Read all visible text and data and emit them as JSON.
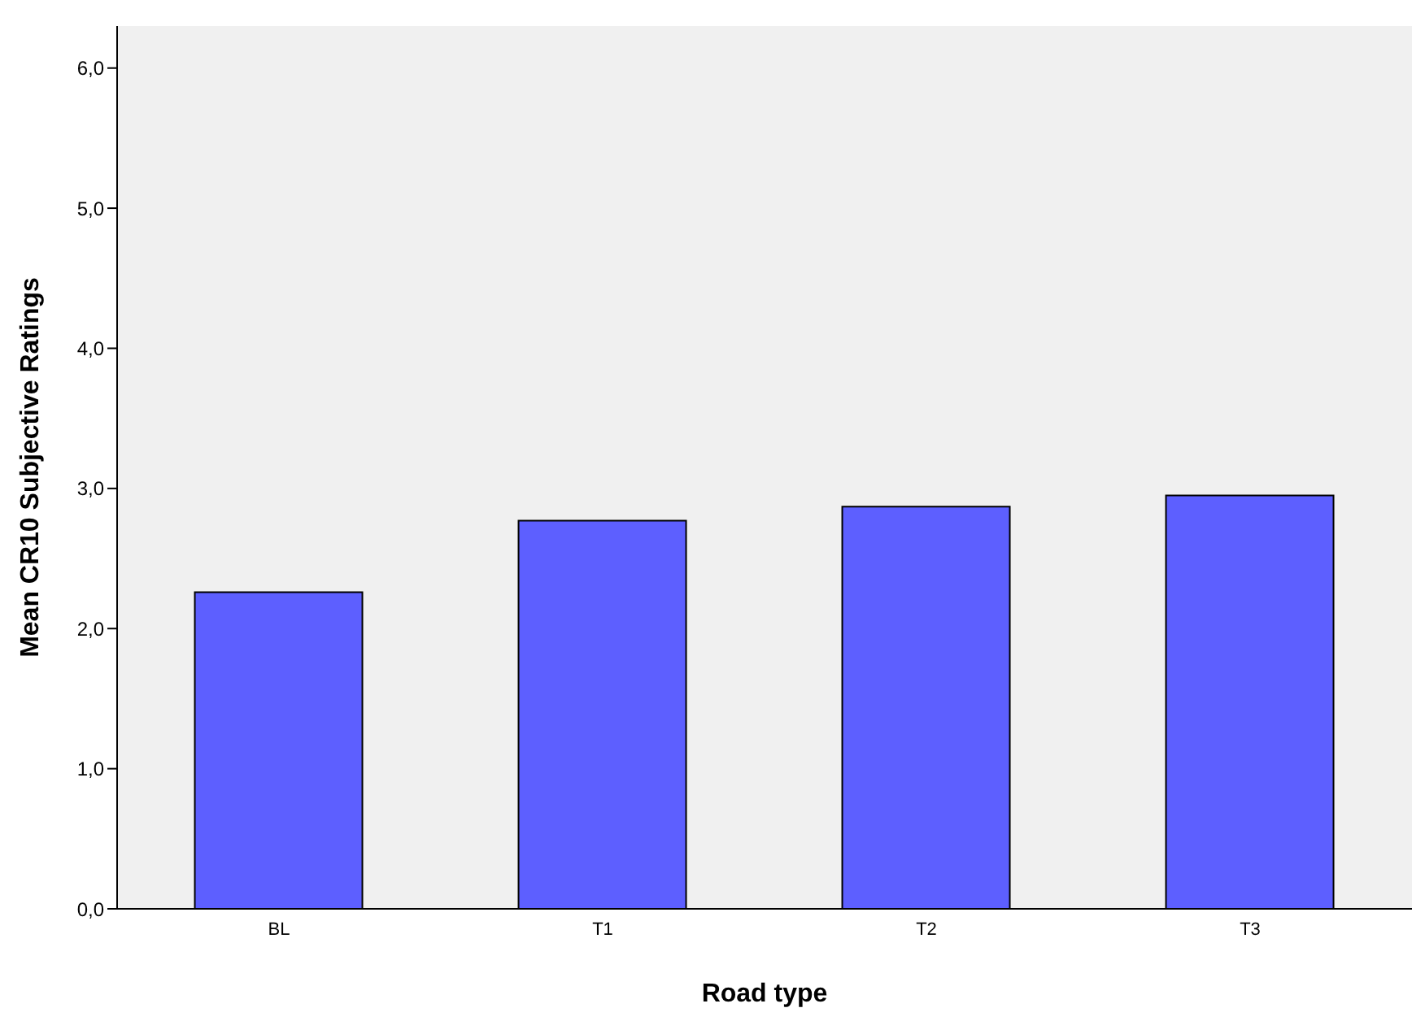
{
  "chart_data": {
    "type": "bar",
    "xlabel": "Road type",
    "ylabel": "Mean CR10 Subjective Ratings",
    "categories": [
      "BL",
      "T1",
      "T2",
      "T3"
    ],
    "values": [
      2.26,
      2.77,
      2.87,
      2.95
    ],
    "color": "#5d5fff",
    "ylim": [
      0,
      6.3
    ],
    "yticks": [
      {
        "value": 0,
        "label": "0,0"
      },
      {
        "value": 1,
        "label": "1,0"
      },
      {
        "value": 2,
        "label": "2,0"
      },
      {
        "value": 3,
        "label": "3,0"
      },
      {
        "value": 4,
        "label": "4,0"
      },
      {
        "value": 5,
        "label": "5,0"
      },
      {
        "value": 6,
        "label": "6,0"
      }
    ]
  }
}
